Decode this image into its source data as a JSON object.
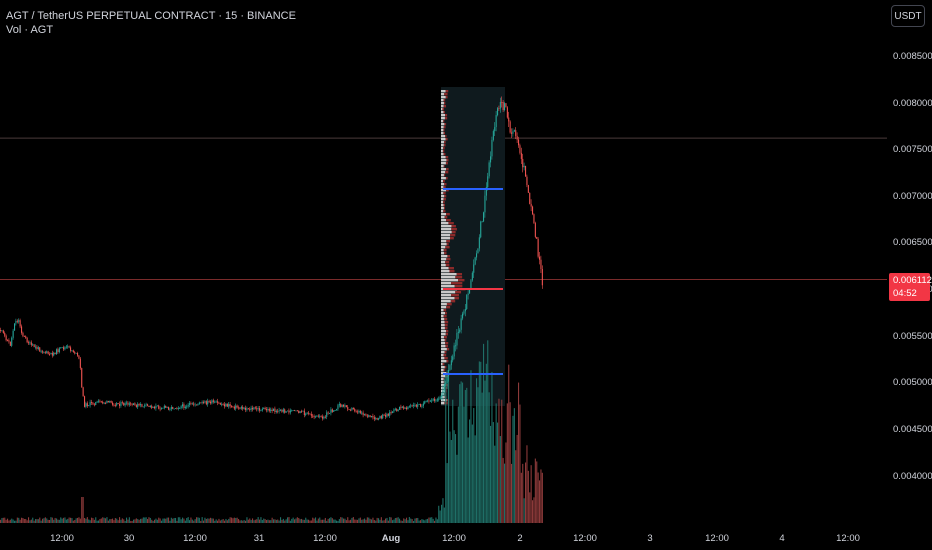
{
  "header": {
    "title": "AGT / TetherUS PERPETUAL CONTRACT · 15 · BINANCE",
    "volume_label": "Vol · AGT"
  },
  "currency_button": "USDT",
  "last_price": {
    "value": "0.006112",
    "countdown": "04:52",
    "color": "#f23645"
  },
  "colors": {
    "up": "#26a69a",
    "down": "#ef5350",
    "vah_val": "#2962ff",
    "poc": "#f23645",
    "background": "#000000"
  },
  "y_axis": {
    "ticks": [
      "0.008500",
      "0.008000",
      "0.007500",
      "0.007000",
      "0.006500",
      "0.006000",
      "0.005500",
      "0.005000",
      "0.004500",
      "0.004000"
    ]
  },
  "x_axis": {
    "ticks": [
      "12:00",
      "30",
      "12:00",
      "31",
      "12:00",
      "Aug",
      "12:00",
      "2",
      "12:00",
      "3",
      "12:00",
      "4",
      "12:00"
    ]
  },
  "chart_data": {
    "type": "candlestick",
    "title": "AGT / TetherUS PERPETUAL CONTRACT · 15 · BINANCE",
    "ylim": [
      0.0037,
      0.0087
    ],
    "price_path_approx": [
      {
        "x": "Jul 29 ~06:00",
        "close": 0.0055
      },
      {
        "x": "Jul 29 ~09:00",
        "close": 0.00565
      },
      {
        "x": "Jul 29 ~17:00",
        "close": 0.00553
      },
      {
        "x": "Jul 29 ~18:00",
        "close": 0.00497
      },
      {
        "x": "Jul 30 12:00",
        "close": 0.0049
      },
      {
        "x": "Jul 31 12:00",
        "close": 0.0048
      },
      {
        "x": "Aug 1 06:00",
        "close": 0.0049
      },
      {
        "x": "Aug 1 12:00",
        "close": 0.0058
      },
      {
        "x": "Aug 1 18:00",
        "close": 0.0072
      },
      {
        "x": "Aug 1 ~22:00",
        "close": 0.0081
      },
      {
        "x": "Aug 2 ~00:00",
        "close": 0.0075
      },
      {
        "x": "Aug 2 ~04:00",
        "close": 0.006112
      }
    ],
    "volume_profile_levels": {
      "vah": 0.00707,
      "poc": 0.00599,
      "val": 0.0051
    },
    "horizontal_lines": [
      0.00763,
      0.006112
    ]
  }
}
